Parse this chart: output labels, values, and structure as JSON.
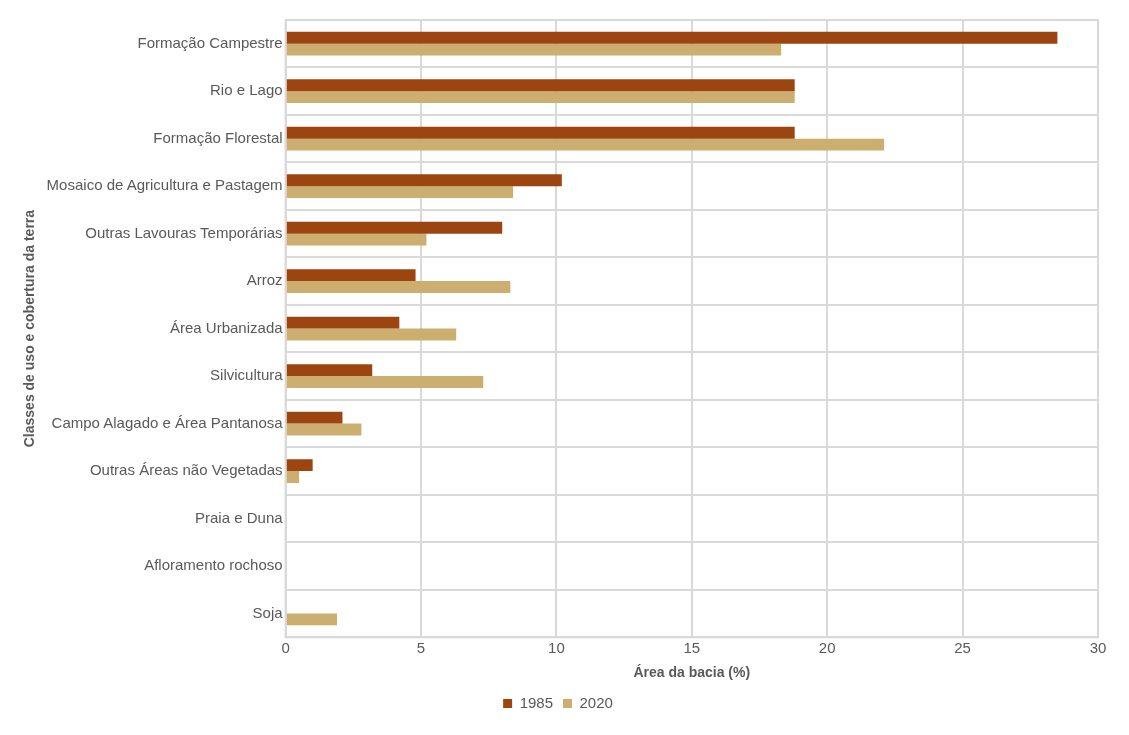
{
  "chart_data": {
    "type": "bar",
    "orientation": "horizontal",
    "xlabel": "Área da bacia (%)",
    "ylabel": "Classes de uso e cobertura da terra",
    "categories": [
      "Formação Campestre",
      "Rio e Lago",
      "Formação Florestal",
      "Mosaico de Agricultura e Pastagem",
      "Outras Lavouras Temporárias",
      "Arroz",
      "Área Urbanizada",
      "Silvicultura",
      "Campo Alagado e Área Pantanosa",
      "Outras Áreas não Vegetadas",
      "Praia e Duna",
      "Afloramento rochoso",
      "Soja"
    ],
    "series": [
      {
        "name": "1985",
        "color": "#9c4511",
        "values": [
          28.5,
          18.8,
          18.8,
          10.2,
          8.0,
          4.8,
          4.2,
          3.2,
          2.1,
          1.0,
          0,
          0,
          0
        ]
      },
      {
        "name": "2020",
        "color": "#ccae70",
        "values": [
          18.3,
          18.8,
          22.1,
          8.4,
          5.2,
          8.3,
          6.3,
          7.3,
          2.8,
          0.5,
          0,
          0,
          1.9
        ]
      }
    ],
    "xlim": [
      0,
      30
    ],
    "xticks": [
      0,
      5,
      10,
      15,
      20,
      25,
      30
    ],
    "grid": true,
    "legend": "bottom"
  }
}
